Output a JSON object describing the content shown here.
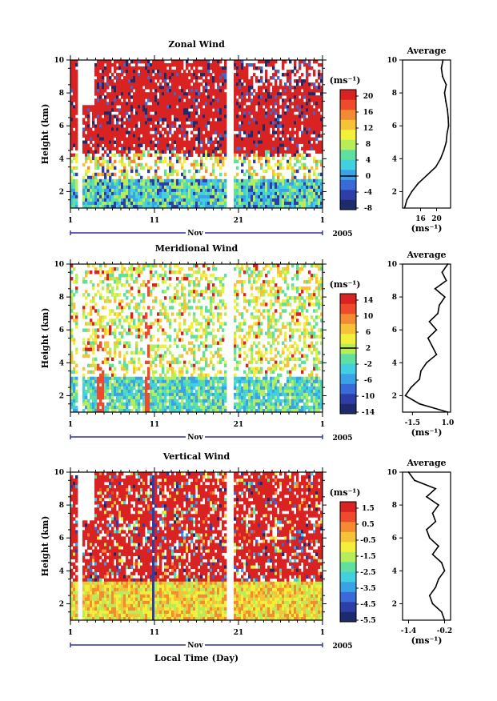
{
  "chart_data": [
    {
      "type": "heatmap",
      "title": "Zonal Wind",
      "ylabel": "Height (km)",
      "y_ticks": [
        "2",
        "4",
        "6",
        "8",
        "10"
      ],
      "ylim": [
        1,
        10
      ],
      "x_ticks": [
        "1",
        "11",
        "21",
        "1"
      ],
      "xlim": [
        1,
        31
      ],
      "month_label": "Nov",
      "year_label": "2005",
      "colorbar": {
        "unit_label": "(ms⁻¹)",
        "ticks": [
          "20",
          "16",
          "12",
          "8",
          "4",
          "0",
          "-4",
          "-8"
        ],
        "range": [
          -10,
          22
        ],
        "zero_level": "0"
      },
      "profile": {
        "title": "Average",
        "x_ticks": [
          "16",
          "20"
        ],
        "xlabel": "(ms⁻¹)",
        "xlim": [
          11.5,
          23.5
        ],
        "heights": [
          1.0,
          1.5,
          2.0,
          2.5,
          3.0,
          3.5,
          4.0,
          4.5,
          5.0,
          5.5,
          6.0,
          6.5,
          7.0,
          7.5,
          8.0,
          8.5,
          9.0,
          9.5,
          10.0
        ],
        "values": [
          12.0,
          12.6,
          13.8,
          15.4,
          17.6,
          19.8,
          21.0,
          21.8,
          22.4,
          22.6,
          23.0,
          22.9,
          22.7,
          22.3,
          22.0,
          22.4,
          21.5,
          21.2,
          21.6
        ]
      }
    },
    {
      "type": "heatmap",
      "title": "Meridional Wind",
      "ylabel": "Height (km)",
      "y_ticks": [
        "2",
        "4",
        "6",
        "8",
        "10"
      ],
      "ylim": [
        1,
        10
      ],
      "x_ticks": [
        "1",
        "11",
        "21",
        "1"
      ],
      "xlim": [
        1,
        31
      ],
      "month_label": "Nov",
      "year_label": "2005",
      "colorbar": {
        "unit_label": "(ms⁻¹)",
        "ticks": [
          "14",
          "10",
          "6",
          "2",
          "-2",
          "-6",
          "-10",
          "-14"
        ],
        "range": [
          -16,
          16
        ],
        "zero_level": "2"
      },
      "profile": {
        "title": "Average",
        "x_ticks": [
          "-1.5",
          "1.0"
        ],
        "xlabel": "(ms⁻¹)",
        "xlim": [
          -2.2,
          1.2
        ],
        "heights": [
          1.0,
          1.5,
          2.0,
          2.5,
          3.0,
          3.5,
          4.0,
          4.5,
          5.0,
          5.5,
          6.0,
          6.5,
          7.0,
          7.5,
          8.0,
          8.5,
          9.0,
          9.5,
          10.0
        ],
        "values": [
          1.0,
          -1.0,
          -2.0,
          -1.6,
          -1.0,
          -0.9,
          -0.5,
          0.2,
          -0.1,
          -0.4,
          0.2,
          -0.3,
          0.3,
          0.4,
          0.8,
          0.1,
          0.9,
          0.6,
          1.0
        ]
      }
    },
    {
      "type": "heatmap",
      "title": "Vertical Wind",
      "ylabel": "Height (km)",
      "y_ticks": [
        "2",
        "4",
        "6",
        "8",
        "10"
      ],
      "ylim": [
        1,
        10
      ],
      "x_ticks": [
        "1",
        "11",
        "21",
        "1"
      ],
      "xlim": [
        1,
        31
      ],
      "month_label": "Nov",
      "year_label": "2005",
      "xlabel": "Local Time (Day)",
      "colorbar": {
        "unit_label": "(ms⁻¹)",
        "ticks": [
          "1.5",
          "0.5",
          "-0.5",
          "-1.5",
          "-2.5",
          "-3.5",
          "-4.5",
          "-5.5"
        ],
        "range": [
          -6.5,
          2.5
        ],
        "zero_level": null
      },
      "profile": {
        "title": "Average",
        "x_ticks": [
          "-1.4",
          "-0.2"
        ],
        "xlabel": "(ms⁻¹)",
        "xlim": [
          -1.6,
          0.0
        ],
        "heights": [
          1.0,
          1.5,
          2.0,
          2.5,
          3.0,
          3.5,
          4.0,
          4.5,
          5.0,
          5.5,
          6.0,
          6.5,
          7.0,
          7.5,
          8.0,
          8.5,
          9.0,
          9.5,
          10.0
        ],
        "values": [
          -0.2,
          -0.3,
          -0.6,
          -0.7,
          -0.5,
          -0.4,
          -0.2,
          -0.3,
          -0.6,
          -0.4,
          -0.7,
          -0.8,
          -0.5,
          -0.6,
          -0.4,
          -0.8,
          -0.5,
          -1.2,
          -1.4
        ]
      }
    }
  ],
  "colors": {
    "palette": [
      "#1d2a6b",
      "#2d3fa6",
      "#3a6ad8",
      "#3aa3e8",
      "#42d0e0",
      "#5fe0a0",
      "#b7ec5a",
      "#f2f03a",
      "#f6c238",
      "#f48a32",
      "#ee4a2c",
      "#d92222"
    ],
    "axis": "#000000",
    "time_axis_line": "#2b2fa6"
  }
}
